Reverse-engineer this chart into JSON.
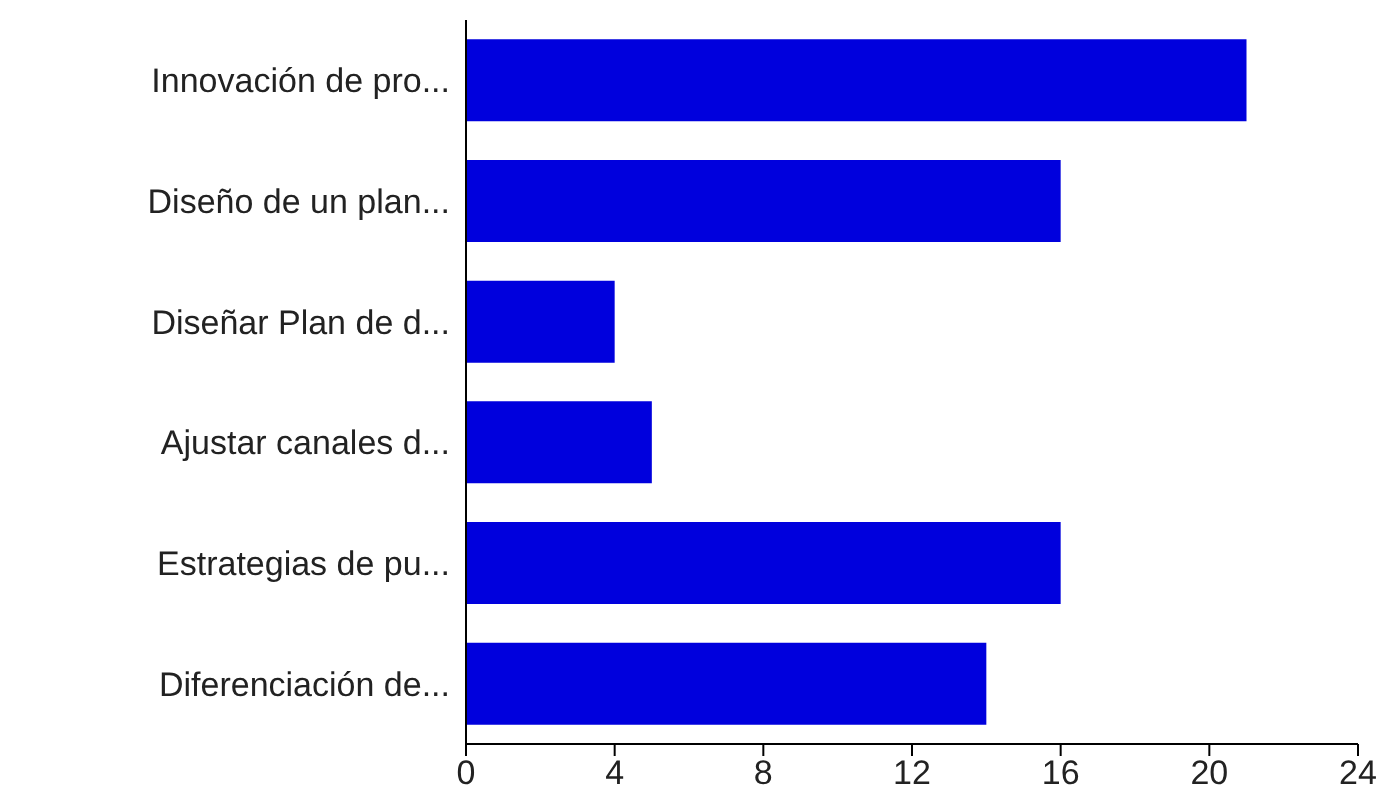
{
  "chart_data": {
    "type": "bar",
    "orientation": "horizontal",
    "categories": [
      "Innovación de pro...",
      "Diseño de un plan...",
      "Diseñar Plan de d...",
      "Ajustar canales d...",
      "Estrategias de pu...",
      "Diferenciación de..."
    ],
    "values": [
      21,
      16,
      4,
      5,
      16,
      14
    ],
    "color": "#0000dd",
    "xlim": [
      0,
      24
    ],
    "xticks": [
      0,
      4,
      8,
      12,
      16,
      20,
      24
    ],
    "grid": false
  }
}
